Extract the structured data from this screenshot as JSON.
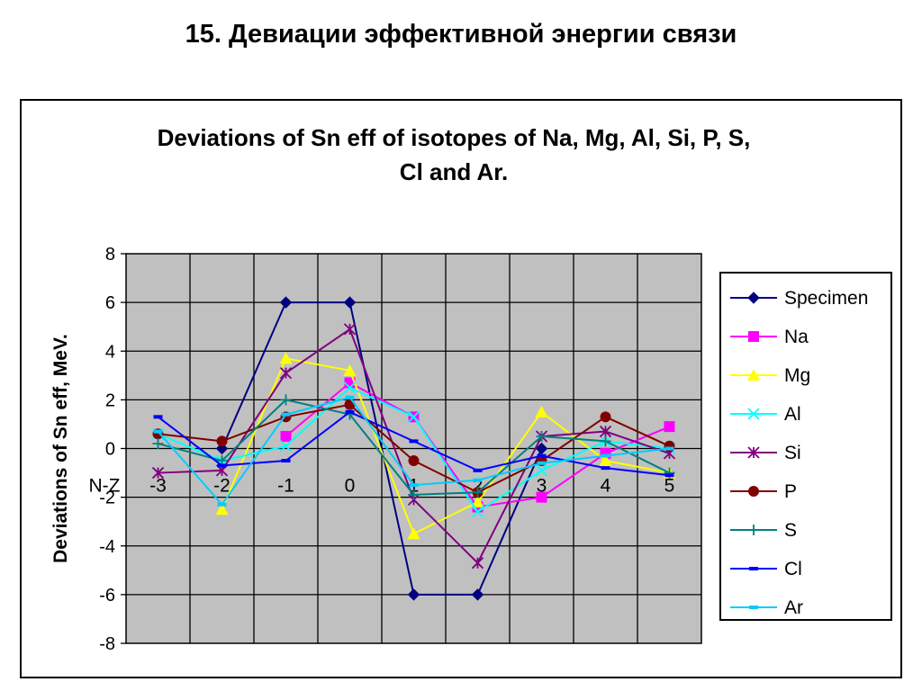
{
  "page": {
    "title": "15. Девиации эффективной энергии связи"
  },
  "chart_data": {
    "type": "line",
    "title": "Deviations of Sn eff of isotopes of Na, Mg, Al, Si, P, S, Cl and  Ar.",
    "title_lines": [
      "Deviations of Sn eff of isotopes of Na, Mg, Al, Si, P, S,",
      "Cl and  Ar."
    ],
    "ylabel": "Deviations of Sn eff, MeV.",
    "xlabel": "N-Z",
    "x": [
      -3,
      -2,
      -1,
      0,
      1,
      2,
      3,
      4,
      5
    ],
    "x_tick_labels": [
      "-3",
      "-2",
      "-1",
      "0",
      "1",
      "2",
      "3",
      "4",
      "5"
    ],
    "y_tick_labels": [
      "8",
      "6",
      "4",
      "2",
      "0",
      "-2",
      "-4",
      "-6",
      "-8"
    ],
    "ylim": [
      -8,
      8
    ],
    "grid": true,
    "plot_background": "#c0c0c0",
    "legend_position": "right",
    "series": [
      {
        "name": "Specimen",
        "color": "#000080",
        "marker": "diamond",
        "values": [
          null,
          0,
          6,
          6,
          -6,
          -6,
          0,
          null,
          null
        ]
      },
      {
        "name": "Na",
        "color": "#ff00ff",
        "marker": "square",
        "values": [
          null,
          null,
          0.5,
          2.7,
          1.3,
          -2.4,
          -2.0,
          -0.2,
          0.9
        ]
      },
      {
        "name": "Mg",
        "color": "#ffff00",
        "marker": "triangle",
        "values": [
          null,
          -2.5,
          3.7,
          3.2,
          -3.5,
          -2.2,
          1.5,
          -0.5,
          -1.0
        ]
      },
      {
        "name": "Al",
        "color": "#00ffff",
        "marker": "x",
        "values": [
          0.6,
          -0.5,
          0.1,
          2.5,
          1.3,
          -2.6,
          -0.9,
          0.3,
          0.0
        ]
      },
      {
        "name": "Si",
        "color": "#800080",
        "marker": "star",
        "values": [
          -1.0,
          -0.9,
          3.1,
          4.9,
          -2.1,
          -4.7,
          0.5,
          0.7,
          -0.2
        ]
      },
      {
        "name": "P",
        "color": "#800000",
        "marker": "circle",
        "values": [
          0.6,
          0.3,
          1.3,
          1.8,
          -0.5,
          -1.8,
          -0.5,
          1.3,
          0.1
        ]
      },
      {
        "name": "S",
        "color": "#008080",
        "marker": "plus",
        "values": [
          0.2,
          -0.5,
          2.0,
          1.4,
          -1.9,
          -1.8,
          0.5,
          0.3,
          -1.0
        ]
      },
      {
        "name": "Cl",
        "color": "#0000ff",
        "marker": "dash",
        "values": [
          1.3,
          -0.7,
          -0.5,
          1.5,
          0.3,
          -0.9,
          -0.3,
          -0.8,
          -1.1
        ]
      },
      {
        "name": "Ar",
        "color": "#00ccff",
        "marker": "dash",
        "values": [
          0.7,
          -2.3,
          1.4,
          2.1,
          -1.5,
          -1.3,
          -0.6,
          -0.3,
          0.0
        ]
      }
    ]
  }
}
